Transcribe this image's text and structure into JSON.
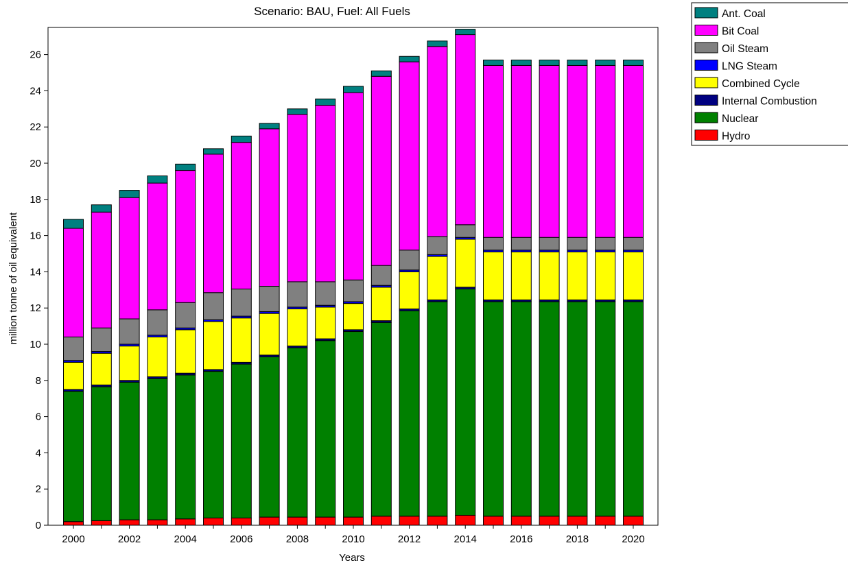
{
  "chart_data": {
    "type": "bar",
    "stacked": true,
    "title": "Scenario: BAU,  Fuel: All Fuels",
    "xlabel": "Years",
    "ylabel": "million  tonne of oil equivalent",
    "ylim": [
      0,
      27.5
    ],
    "yticks": [
      0,
      2,
      4,
      6,
      8,
      10,
      12,
      14,
      16,
      18,
      20,
      22,
      24,
      26
    ],
    "categories": [
      "2000",
      "2001",
      "2002",
      "2003",
      "2004",
      "2005",
      "2006",
      "2007",
      "2008",
      "2009",
      "2010",
      "2011",
      "2012",
      "2013",
      "2014",
      "2015",
      "2016",
      "2017",
      "2018",
      "2019",
      "2020"
    ],
    "xtick_labels": [
      "2000",
      "",
      "2002",
      "",
      "2004",
      "",
      "2006",
      "",
      "2008",
      "",
      "2010",
      "",
      "2012",
      "",
      "2014",
      "",
      "2016",
      "",
      "2018",
      "",
      "2020"
    ],
    "legend_position": "top-right, outside plot",
    "series": [
      {
        "name": "Hydro",
        "color": "#ff0000",
        "values": [
          0.2,
          0.25,
          0.3,
          0.3,
          0.35,
          0.4,
          0.4,
          0.45,
          0.45,
          0.45,
          0.45,
          0.5,
          0.5,
          0.5,
          0.55,
          0.5,
          0.5,
          0.5,
          0.5,
          0.5,
          0.5
        ]
      },
      {
        "name": "Nuclear",
        "color": "#008000",
        "values": [
          7.2,
          7.4,
          7.6,
          7.8,
          7.95,
          8.1,
          8.5,
          8.85,
          9.35,
          9.75,
          10.25,
          10.7,
          11.35,
          11.85,
          12.5,
          11.85,
          11.85,
          11.85,
          11.85,
          11.85,
          11.85
        ]
      },
      {
        "name": "Internal Combustion",
        "color": "#000080",
        "values": [
          0.1,
          0.1,
          0.1,
          0.1,
          0.1,
          0.1,
          0.1,
          0.1,
          0.1,
          0.1,
          0.1,
          0.1,
          0.1,
          0.1,
          0.1,
          0.1,
          0.1,
          0.1,
          0.1,
          0.1,
          0.1
        ]
      },
      {
        "name": "Combined Cycle",
        "color": "#ffff00",
        "values": [
          1.5,
          1.75,
          1.9,
          2.2,
          2.4,
          2.65,
          2.45,
          2.3,
          2.05,
          1.75,
          1.45,
          1.85,
          2.05,
          2.4,
          2.65,
          2.65,
          2.65,
          2.65,
          2.65,
          2.65,
          2.65
        ]
      },
      {
        "name": "LNG Steam",
        "color": "#0000ff",
        "values": [
          0.1,
          0.1,
          0.1,
          0.1,
          0.1,
          0.1,
          0.1,
          0.1,
          0.1,
          0.1,
          0.1,
          0.1,
          0.1,
          0.1,
          0.1,
          0.1,
          0.1,
          0.1,
          0.1,
          0.1,
          0.1
        ]
      },
      {
        "name": "Oil Steam",
        "color": "#808080",
        "values": [
          1.3,
          1.3,
          1.4,
          1.4,
          1.4,
          1.5,
          1.5,
          1.4,
          1.4,
          1.3,
          1.2,
          1.1,
          1.1,
          1.0,
          0.7,
          0.7,
          0.7,
          0.7,
          0.7,
          0.7,
          0.7
        ]
      },
      {
        "name": "Bit Coal",
        "color": "#ff00ff",
        "values": [
          6.0,
          6.4,
          6.7,
          7.0,
          7.3,
          7.65,
          8.1,
          8.7,
          9.25,
          9.75,
          10.35,
          10.45,
          10.4,
          10.5,
          10.5,
          9.5,
          9.5,
          9.5,
          9.5,
          9.5,
          9.5
        ]
      },
      {
        "name": "Ant. Coal",
        "color": "#008080",
        "values": [
          0.5,
          0.4,
          0.4,
          0.4,
          0.35,
          0.3,
          0.35,
          0.3,
          0.3,
          0.35,
          0.35,
          0.3,
          0.3,
          0.3,
          0.3,
          0.3,
          0.3,
          0.3,
          0.3,
          0.3,
          0.3
        ]
      }
    ],
    "legend_order": [
      "Ant. Coal",
      "Bit Coal",
      "Oil Steam",
      "LNG Steam",
      "Combined Cycle",
      "Internal Combustion",
      "Nuclear",
      "Hydro"
    ]
  }
}
